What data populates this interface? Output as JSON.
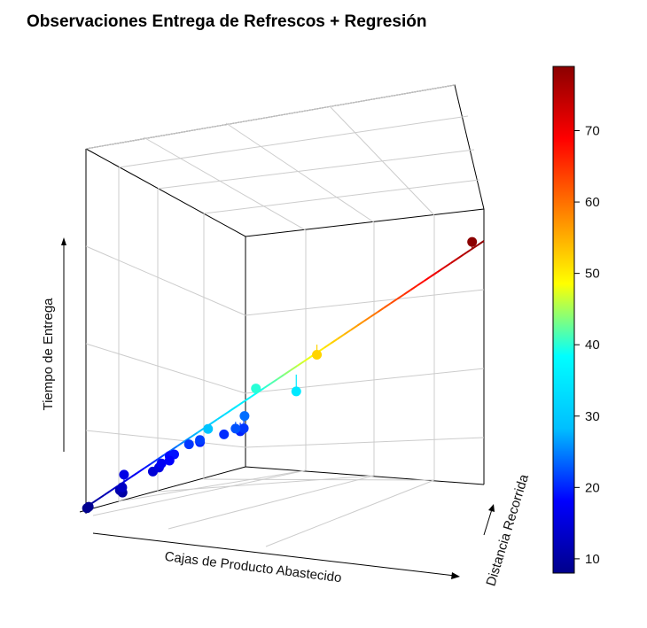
{
  "chart_data": {
    "type": "scatter",
    "title": "Observaciones Entrega de Refrescos + Regresión",
    "subtitle": "",
    "xlabel": "Cajas de Producto Abastecido",
    "ylabel": "Distancia Recorrida",
    "zlabel": "Tiempo de Entrega",
    "grid": true,
    "legend_placement": "right",
    "has_regression_plane": true,
    "colorbar": {
      "ticks": [
        10,
        20,
        30,
        40,
        50,
        60,
        70
      ],
      "range": [
        8,
        79
      ],
      "colors": [
        "#00008b",
        "#0000ff",
        "#00bfff",
        "#00ffff",
        "#ffff00",
        "#ff8000",
        "#ff0000",
        "#8b0000"
      ]
    },
    "points": [
      {
        "id": 1,
        "z": 8.0,
        "fitted": 8.5
      },
      {
        "id": 2,
        "z": 8.5,
        "fitted": 9.0
      },
      {
        "id": 3,
        "z": 10.0,
        "fitted": 11.5
      },
      {
        "id": 4,
        "z": 11.0,
        "fitted": 11.5
      },
      {
        "id": 5,
        "z": 16.0,
        "fitted": 13.0
      },
      {
        "id": 6,
        "z": 13.0,
        "fitted": 14.0
      },
      {
        "id": 7,
        "z": 14.5,
        "fitted": 15.0
      },
      {
        "id": 8,
        "z": 15.5,
        "fitted": 16.0
      },
      {
        "id": 9,
        "z": 17.0,
        "fitted": 17.0
      },
      {
        "id": 10,
        "z": 18.5,
        "fitted": 17.5
      },
      {
        "id": 11,
        "z": 19.0,
        "fitted": 18.5
      },
      {
        "id": 12,
        "z": 20.0,
        "fitted": 19.5
      },
      {
        "id": 13,
        "z": 18.0,
        "fitted": 19.0
      },
      {
        "id": 14,
        "z": 21.0,
        "fitted": 20.0
      },
      {
        "id": 15,
        "z": 21.5,
        "fitted": 21.0
      },
      {
        "id": 16,
        "z": 20.5,
        "fitted": 21.5
      },
      {
        "id": 17,
        "z": 20.0,
        "fitted": 22.5
      },
      {
        "id": 18,
        "z": 21.0,
        "fitted": 23.5
      },
      {
        "id": 19,
        "z": 24.0,
        "fitted": 22.5
      },
      {
        "id": 20,
        "z": 22.5,
        "fitted": 24.5
      },
      {
        "id": 21,
        "z": 29.0,
        "fitted": 30.0
      },
      {
        "id": 22,
        "z": 35.0,
        "fitted": 40.0
      },
      {
        "id": 23,
        "z": 40.0,
        "fitted": 38.5
      },
      {
        "id": 24,
        "z": 52.0,
        "fitted": 55.0
      },
      {
        "id": 25,
        "z": 79.0,
        "fitted": 77.0
      }
    ]
  }
}
